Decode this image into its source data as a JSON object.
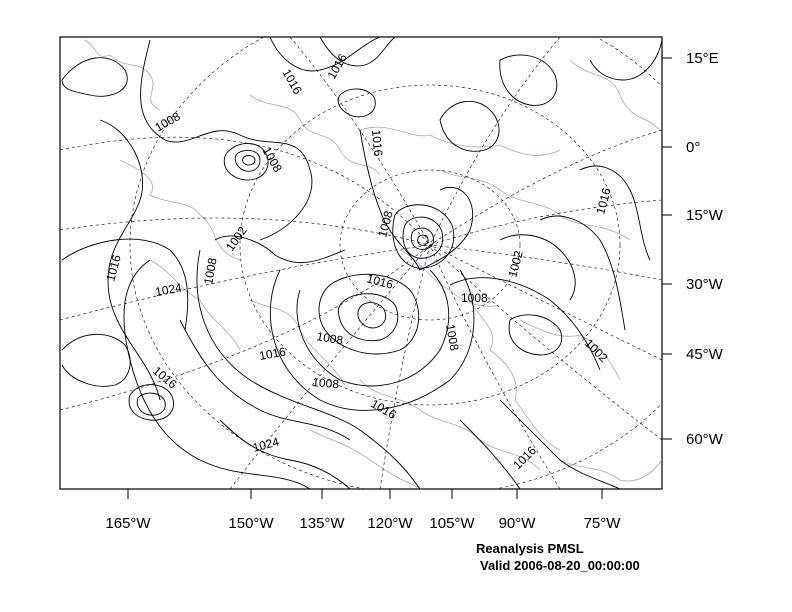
{
  "map": {
    "title": "Reanalysis PMSL",
    "valid_time": "Valid 2006-08-20_00:00:00",
    "longitude_labels": [
      "165°W",
      "150°W",
      "135°W",
      "120°W",
      "105°W",
      "90°W",
      "75°W"
    ],
    "latitude_labels": [
      "15°E",
      "0°",
      "15°W",
      "30°W",
      "45°W",
      "60°W"
    ],
    "contour_labels": [
      "1008",
      "1016",
      "1016",
      "1016",
      "1008",
      "1016",
      "1008",
      "1002",
      "1016",
      "1024",
      "1008",
      "1016",
      "1002",
      "1008",
      "1008",
      "1008",
      "1016",
      "1002",
      "1016",
      "1008",
      "1016",
      "1024",
      "1016",
      "1008"
    ],
    "colors": {
      "contour": "#000000",
      "coastline": "#b89ad6",
      "graticule": "#000000",
      "frame": "#000000"
    }
  }
}
